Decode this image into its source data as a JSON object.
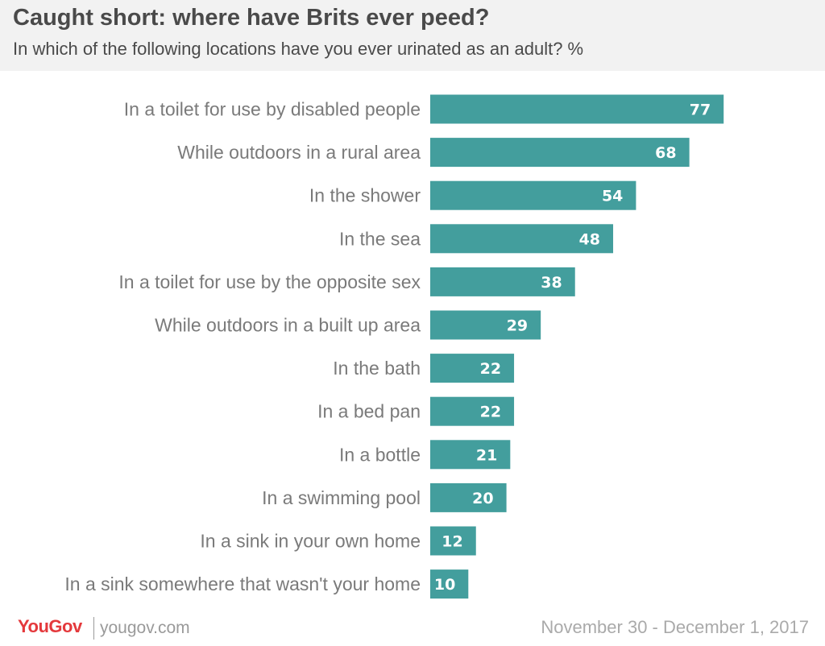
{
  "header": {
    "title": "Caught short: where have Brits ever peed?",
    "subtitle": "In which of the following locations have you ever urinated as an adult? %"
  },
  "chart_data": {
    "type": "bar",
    "orientation": "horizontal",
    "categories": [
      "In a toilet for use by disabled people",
      "While outdoors in a rural area",
      "In the shower",
      "In the sea",
      "In a toilet for use by the opposite sex",
      "While outdoors in a built up area",
      "In the bath",
      "In a bed pan",
      "In a bottle",
      "In a swimming pool",
      "In a sink in your own home",
      "In a sink somewhere that wasn't your home"
    ],
    "values": [
      77,
      68,
      54,
      48,
      38,
      29,
      22,
      22,
      21,
      20,
      12,
      10
    ],
    "xlim": [
      0,
      100
    ],
    "grid": false,
    "bar_color": "#439e9d",
    "value_label_color": "#ffffff"
  },
  "footer": {
    "brand": "YouGov",
    "site": "yougov.com",
    "date": "November 30 - December 1, 2017"
  }
}
